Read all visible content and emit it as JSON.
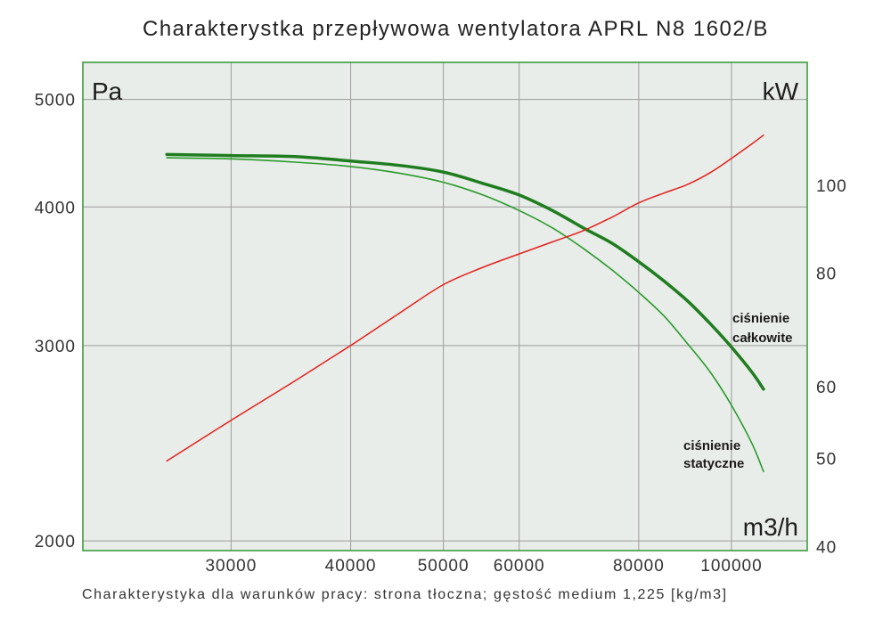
{
  "chart_data": {
    "type": "line",
    "title": "Charakterystka przepływowa wentylatora APRL N8 1602/B",
    "note": "Charakterystyka dla warunków pracy: strona tłoczna; gęstość medium 1,225 [kg/m3]",
    "xlabel": "m3/h",
    "ylabel": "Pa",
    "y2label": "kW",
    "xscale": "log",
    "yscale": "log",
    "y2scale": "log",
    "xlim": [
      21000,
      120000
    ],
    "ylim": [
      1960,
      5400
    ],
    "y2lim": [
      39.6,
      136.5
    ],
    "x_ticks": [
      30000,
      40000,
      50000,
      60000,
      80000,
      100000
    ],
    "y_ticks": [
      2000,
      3000,
      4000,
      5000
    ],
    "y2_ticks": [
      40,
      50,
      60,
      80,
      100
    ],
    "grid": true,
    "plot_background": "#e8ede9",
    "frame_color": "#3d9b3d",
    "x": [
      25700,
      30000,
      35000,
      40000,
      45000,
      50000,
      55000,
      60000,
      65000,
      70000,
      75000,
      80000,
      85000,
      90000,
      95000,
      100000,
      105000,
      108000
    ],
    "series": [
      {
        "name": "ciśnienie całkowite",
        "axis": "left",
        "color": "#1f7d1f",
        "values": [
          4460,
          4450,
          4440,
          4400,
          4360,
          4300,
          4200,
          4100,
          3970,
          3830,
          3710,
          3570,
          3430,
          3290,
          3140,
          2990,
          2840,
          2740
        ]
      },
      {
        "name": "ciśnienie statyczne",
        "axis": "left",
        "color": "#2a9a2a",
        "values": [
          4430,
          4420,
          4390,
          4350,
          4290,
          4210,
          4100,
          3970,
          3830,
          3670,
          3510,
          3350,
          3190,
          3010,
          2840,
          2650,
          2450,
          2310
        ]
      },
      {
        "axis": "right",
        "color": "#e6201c",
        "values": [
          49.7,
          55.1,
          60.9,
          66.6,
          72.3,
          77.7,
          81.2,
          84.0,
          86.6,
          89.1,
          92.2,
          95.6,
          98.0,
          100.2,
          103.2,
          107.0,
          111.0,
          113.5
        ]
      }
    ]
  }
}
